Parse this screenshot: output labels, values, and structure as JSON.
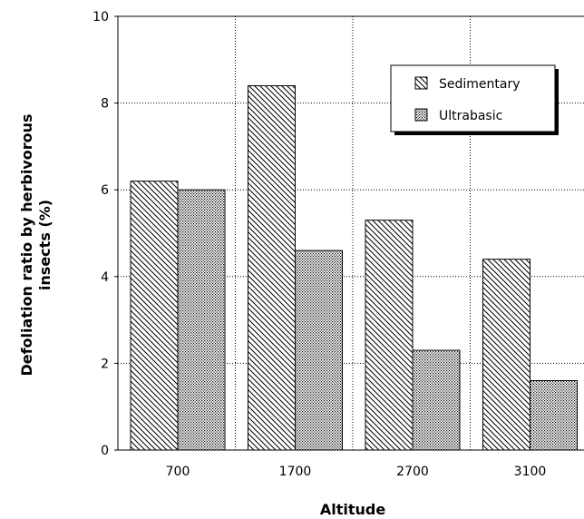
{
  "chart_data": {
    "type": "bar",
    "title": "",
    "xlabel": "Altitude",
    "ylabel_lines": [
      "Defoliation ratio by herbivorous",
      "insects (%)"
    ],
    "categories": [
      "700",
      "1700",
      "2700",
      "3100"
    ],
    "ylim": [
      0,
      10
    ],
    "yticks": [
      "0",
      "2",
      "4",
      "6",
      "8",
      "10"
    ],
    "grid": true,
    "legend_position": "top-right",
    "series": [
      {
        "name": "Sedimentary",
        "pattern": "diagonal-hatch",
        "values": [
          6.2,
          8.4,
          5.3,
          4.4
        ]
      },
      {
        "name": "Ultrabasic",
        "pattern": "dotted-fill",
        "values": [
          6.0,
          4.6,
          2.3,
          1.6
        ]
      }
    ]
  }
}
